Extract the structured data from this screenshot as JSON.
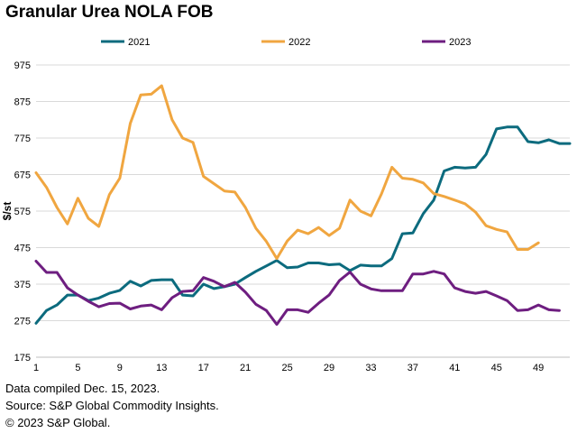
{
  "chart_data": {
    "type": "line",
    "title": "Granular Urea NOLA FOB",
    "xlabel": "",
    "ylabel": "$/st",
    "ylim": [
      175,
      975
    ],
    "yticks": [
      175,
      275,
      375,
      475,
      575,
      675,
      775,
      875,
      975
    ],
    "xlim": [
      1,
      52
    ],
    "xticks": [
      1,
      5,
      9,
      13,
      17,
      21,
      25,
      29,
      33,
      37,
      41,
      45,
      49
    ],
    "grid": "horizontal",
    "legend_position": "top",
    "series": [
      {
        "name": "2021",
        "color": "#0c6b7e",
        "x": [
          1,
          2,
          3,
          4,
          5,
          6,
          7,
          8,
          9,
          10,
          11,
          12,
          13,
          14,
          15,
          16,
          17,
          18,
          19,
          20,
          21,
          22,
          23,
          24,
          25,
          26,
          27,
          28,
          29,
          30,
          31,
          32,
          33,
          34,
          35,
          36,
          37,
          38,
          39,
          40,
          41,
          42,
          43,
          44,
          45,
          46,
          47,
          48,
          49,
          50,
          51,
          52
        ],
        "values": [
          268,
          303,
          318,
          345,
          345,
          330,
          337,
          350,
          358,
          383,
          370,
          385,
          387,
          387,
          345,
          343,
          375,
          363,
          368,
          375,
          393,
          410,
          425,
          440,
          420,
          422,
          433,
          433,
          428,
          430,
          412,
          427,
          425,
          425,
          445,
          513,
          515,
          568,
          605,
          685,
          695,
          693,
          695,
          730,
          800,
          805,
          805,
          765,
          762,
          770,
          760,
          760
        ]
      },
      {
        "name": "2022",
        "color": "#f0a640",
        "x": [
          1,
          2,
          3,
          4,
          5,
          6,
          7,
          8,
          9,
          10,
          11,
          12,
          13,
          14,
          15,
          16,
          17,
          18,
          19,
          20,
          21,
          22,
          23,
          24,
          25,
          26,
          27,
          28,
          29,
          30,
          31,
          32,
          33,
          34,
          35,
          36,
          37,
          38,
          39,
          40,
          41,
          42,
          43,
          44,
          45,
          46,
          47,
          48,
          49
        ],
        "values": [
          680,
          640,
          585,
          540,
          610,
          555,
          533,
          620,
          665,
          815,
          893,
          895,
          918,
          825,
          775,
          763,
          670,
          650,
          630,
          627,
          585,
          528,
          492,
          445,
          493,
          523,
          513,
          530,
          508,
          528,
          605,
          575,
          562,
          622,
          695,
          665,
          662,
          652,
          623,
          615,
          605,
          595,
          572,
          535,
          525,
          518,
          470,
          470,
          488
        ]
      },
      {
        "name": "2023",
        "color": "#6e1e80",
        "x": [
          1,
          2,
          3,
          4,
          5,
          6,
          7,
          8,
          9,
          10,
          11,
          12,
          13,
          14,
          15,
          16,
          17,
          18,
          19,
          20,
          21,
          22,
          23,
          24,
          25,
          26,
          27,
          28,
          29,
          30,
          31,
          32,
          33,
          34,
          35,
          36,
          37,
          38,
          39,
          40,
          41,
          42,
          43,
          44,
          45,
          46,
          47,
          48,
          49,
          50,
          51
        ],
        "values": [
          438,
          407,
          407,
          365,
          345,
          328,
          313,
          322,
          323,
          307,
          315,
          318,
          305,
          338,
          355,
          357,
          393,
          383,
          368,
          380,
          353,
          320,
          303,
          265,
          305,
          305,
          298,
          323,
          345,
          385,
          408,
          375,
          362,
          357,
          357,
          357,
          403,
          403,
          410,
          403,
          365,
          355,
          350,
          355,
          343,
          330,
          303,
          305,
          318,
          305,
          303
        ]
      }
    ]
  },
  "footnotes": {
    "line1": "Data compiled Dec. 15, 2023.",
    "line2": "Source: S&P Global Commodity Insights.",
    "line3": "© 2023 S&P Global."
  }
}
